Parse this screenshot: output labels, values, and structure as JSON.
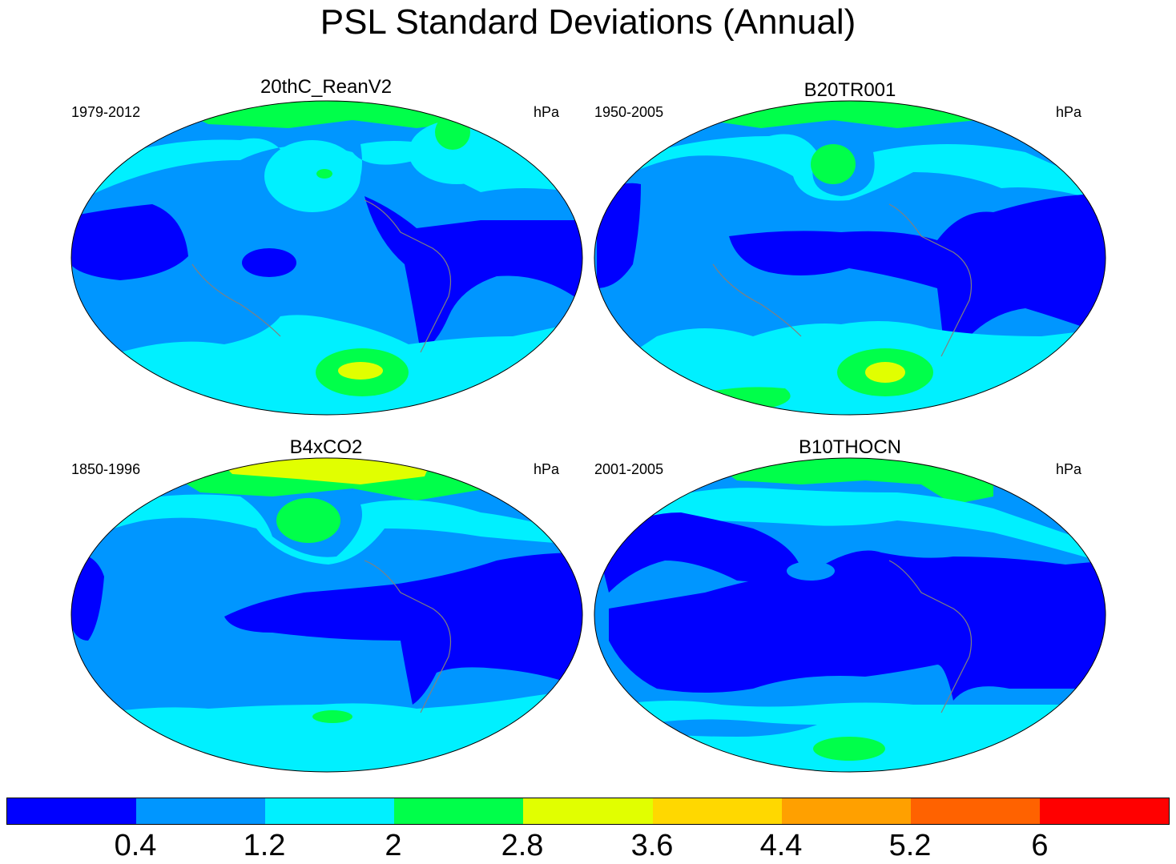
{
  "title": "PSL Standard Deviations (Annual)",
  "units": "hPa",
  "panels": [
    {
      "name": "20thC_ReanV2",
      "years": "1979-2012",
      "units": "hPa"
    },
    {
      "name": "B20TR001",
      "years": "1950-2005",
      "units": "hPa"
    },
    {
      "name": "B4xCO2",
      "years": "1850-1996",
      "units": "hPa"
    },
    {
      "name": "B10THOCN",
      "years": "2001-2005",
      "units": "hPa"
    }
  ],
  "colorbar": {
    "labels": [
      "0.4",
      "1.2",
      "2",
      "2.8",
      "3.6",
      "4.4",
      "5.2",
      "6"
    ],
    "colors": [
      "#0000ff",
      "#0096ff",
      "#00f0ff",
      "#00ff4a",
      "#e1ff00",
      "#ffd800",
      "#ffa000",
      "#ff6200",
      "#ff0000"
    ]
  },
  "map_colors": {
    "level_0": "#0000ff",
    "level_1": "#0096ff",
    "level_2": "#00f0ff",
    "level_3": "#00ff4a",
    "level_4": "#e1ff00",
    "coast": "#808080"
  }
}
